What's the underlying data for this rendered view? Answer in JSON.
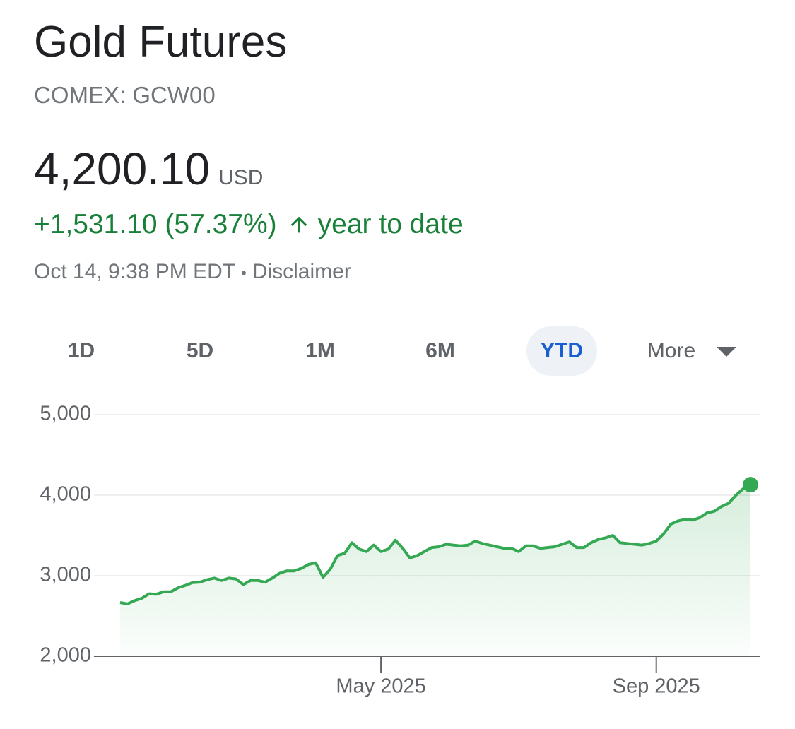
{
  "header": {
    "title": "Gold Futures",
    "subtitle": "COMEX: GCW00"
  },
  "quote": {
    "price": "4,200.10",
    "currency": "USD",
    "change": "+1,531.10 (57.37%)",
    "period": "year to date",
    "timestamp": "Oct 14, 9:38 PM EDT",
    "separator": "•",
    "disclaimer": "Disclaimer"
  },
  "tabs": {
    "items": [
      "1D",
      "5D",
      "1M",
      "6M",
      "YTD",
      "More"
    ],
    "selected": 4
  },
  "chart_data": {
    "type": "line",
    "color": "#34a853",
    "area": true,
    "grid": true,
    "ylim": [
      2000,
      5000
    ],
    "yticks": [
      {
        "value": 2000,
        "label": "2,000"
      },
      {
        "value": 3000,
        "label": "3,000"
      },
      {
        "value": 4000,
        "label": "4,000"
      },
      {
        "value": 5000,
        "label": "5,000"
      }
    ],
    "categories": [
      null,
      null,
      null,
      null,
      null,
      null,
      null,
      null,
      null,
      null,
      null,
      null,
      null,
      null,
      null,
      null,
      null,
      null,
      null,
      null,
      null,
      null,
      null,
      null,
      null,
      null,
      null,
      null,
      null,
      null,
      null,
      null,
      null,
      null,
      null,
      null,
      "May 2025",
      null,
      null,
      null,
      null,
      null,
      null,
      null,
      null,
      null,
      null,
      null,
      null,
      null,
      null,
      null,
      null,
      null,
      null,
      null,
      null,
      null,
      null,
      null,
      null,
      null,
      null,
      null,
      null,
      null,
      null,
      null,
      null,
      null,
      null,
      null,
      null,
      null,
      "Sep 2025",
      null,
      null,
      null,
      null,
      null,
      null,
      null,
      null,
      null,
      null,
      null,
      null,
      null
    ],
    "values": [
      2667,
      2650,
      2690,
      2720,
      2775,
      2770,
      2800,
      2800,
      2850,
      2880,
      2915,
      2920,
      2950,
      2970,
      2940,
      2970,
      2960,
      2890,
      2940,
      2940,
      2920,
      2970,
      3030,
      3060,
      3060,
      3090,
      3140,
      3160,
      2980,
      3080,
      3250,
      3280,
      3410,
      3330,
      3300,
      3380,
      3300,
      3330,
      3440,
      3340,
      3220,
      3250,
      3300,
      3350,
      3360,
      3390,
      3380,
      3370,
      3380,
      3430,
      3400,
      3380,
      3360,
      3340,
      3340,
      3300,
      3370,
      3370,
      3340,
      3350,
      3360,
      3390,
      3420,
      3350,
      3350,
      3410,
      3450,
      3470,
      3500,
      3410,
      3400,
      3390,
      3380,
      3400,
      3430,
      3520,
      3640,
      3680,
      3700,
      3690,
      3720,
      3780,
      3800,
      3860,
      3900,
      4000,
      4080,
      4130
    ]
  }
}
